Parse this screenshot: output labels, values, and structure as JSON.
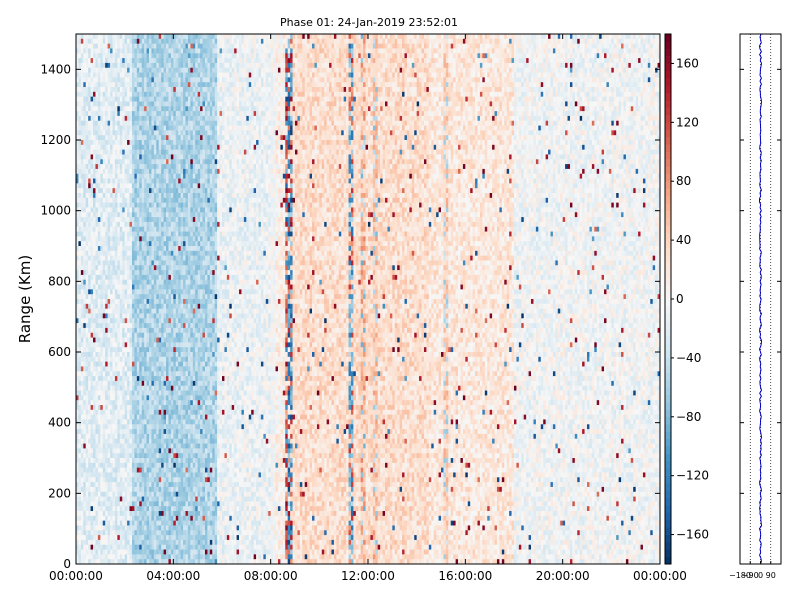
{
  "chart_data": {
    "type": "heatmap",
    "title": "Phase 01: 24-Jan-2019 23:52:01",
    "ylabel": "Range (Km)",
    "xlabel": "",
    "x_tick_labels": [
      "00:00:00",
      "04:00:00",
      "08:00:00",
      "12:00:00",
      "16:00:00",
      "20:00:00",
      "00:00:00"
    ],
    "x_tick_hours": [
      0,
      4,
      8,
      12,
      16,
      20,
      24
    ],
    "xlim_hours": [
      0,
      24
    ],
    "y_ticks": [
      0,
      200,
      400,
      600,
      800,
      1000,
      1200,
      1400
    ],
    "ylim": [
      0,
      1500
    ],
    "colorbar": {
      "ticks": [
        160,
        120,
        80,
        40,
        0,
        -40,
        -80,
        -120,
        -160
      ],
      "tick_labels": [
        "160",
        "120",
        "80",
        "40",
        "0",
        "−40",
        "−80",
        "−120",
        "−160"
      ],
      "vmin": -180,
      "vmax": 180,
      "colormap": "RdBu_r",
      "colors": [
        "#053061",
        "#2166ac",
        "#4393c3",
        "#92c5de",
        "#d1e5f0",
        "#f7f7f7",
        "#fddbc7",
        "#f4a582",
        "#d6604d",
        "#b2182b",
        "#67001f"
      ]
    },
    "background_mean_phase_by_time": [
      {
        "start_h": 0.0,
        "end_h": 2.3,
        "phase": -20
      },
      {
        "start_h": 2.3,
        "end_h": 5.8,
        "phase": -55
      },
      {
        "start_h": 5.8,
        "end_h": 8.0,
        "phase": -10
      },
      {
        "start_h": 8.0,
        "end_h": 8.8,
        "phase": 10
      },
      {
        "start_h": 8.8,
        "end_h": 14.5,
        "phase": 30
      },
      {
        "start_h": 14.5,
        "end_h": 18.0,
        "phase": 20
      },
      {
        "start_h": 18.0,
        "end_h": 24.0,
        "phase": -5
      }
    ],
    "vertical_stripes": [
      {
        "hour": 8.1,
        "phase": -20,
        "note": "mixed"
      },
      {
        "hour": 8.65,
        "phase": 170
      },
      {
        "hour": 8.8,
        "phase": -170
      },
      {
        "hour": 11.3,
        "phase": -140
      },
      {
        "hour": 11.8,
        "phase": 90
      },
      {
        "hour": 12.3,
        "phase": 80
      },
      {
        "hour": 15.2,
        "phase": 70
      }
    ],
    "profile_panel": {
      "x_tick_labels": [
        "−180",
        "−90",
        "0",
        "90"
      ],
      "x_ticks": [
        -180,
        -90,
        0,
        90
      ],
      "xlim": [
        -180,
        180
      ],
      "ylim": [
        0,
        1500
      ],
      "line_color": "#0000cc",
      "mean_phase": 0
    }
  }
}
